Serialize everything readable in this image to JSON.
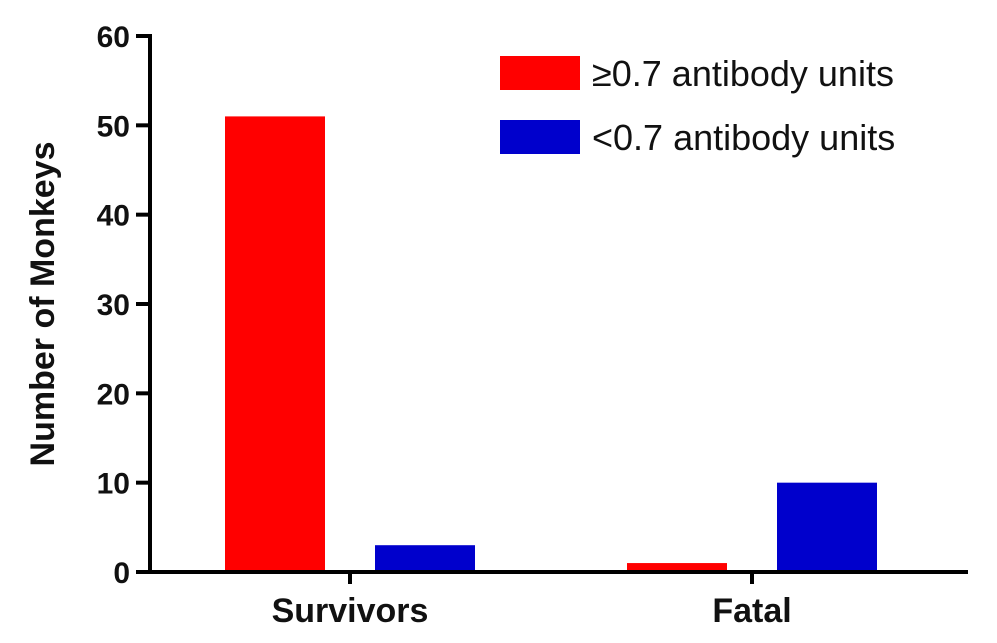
{
  "chart_data": {
    "type": "bar",
    "title": "",
    "xlabel": "",
    "ylabel": "Number of Monkeys",
    "ylim": [
      0,
      60
    ],
    "yticks": [
      0,
      10,
      20,
      30,
      40,
      50,
      60
    ],
    "categories": [
      "Survivors",
      "Fatal"
    ],
    "series": [
      {
        "name": "≥0.7 antibody units",
        "color": "#ff0000",
        "values": [
          51,
          1
        ]
      },
      {
        "name": "<0.7 antibody units",
        "color": "#0000cc",
        "values": [
          3,
          10
        ]
      }
    ],
    "legend_position": "top-right",
    "grid": false
  }
}
